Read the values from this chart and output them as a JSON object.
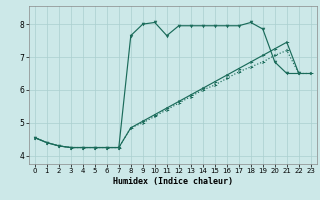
{
  "xlabel": "Humidex (Indice chaleur)",
  "bg_color": "#cce8e8",
  "grid_color": "#aacfcf",
  "line_color": "#1a6b5a",
  "xlim": [
    -0.5,
    23.5
  ],
  "ylim": [
    3.75,
    8.55
  ],
  "xticks": [
    0,
    1,
    2,
    3,
    4,
    5,
    6,
    7,
    8,
    9,
    10,
    11,
    12,
    13,
    14,
    15,
    16,
    17,
    18,
    19,
    20,
    21,
    22,
    23
  ],
  "yticks": [
    4,
    5,
    6,
    7,
    8
  ],
  "line1_x": [
    0,
    1,
    2,
    3,
    4,
    5,
    6,
    7,
    8,
    9,
    10,
    11,
    12,
    13,
    14,
    15,
    16,
    17,
    18,
    19,
    20,
    21,
    22,
    23
  ],
  "line1_y": [
    4.55,
    4.4,
    4.3,
    4.25,
    4.25,
    4.25,
    4.25,
    4.25,
    7.65,
    8.0,
    8.05,
    7.65,
    7.95,
    7.95,
    7.95,
    7.95,
    7.95,
    7.95,
    8.05,
    7.85,
    6.85,
    6.5,
    6.5,
    null
  ],
  "line2_x": [
    0,
    1,
    2,
    3,
    4,
    5,
    6,
    7,
    8,
    9,
    10,
    11,
    12,
    13,
    14,
    15,
    16,
    17,
    18,
    19,
    20,
    21,
    22,
    23
  ],
  "line2_y": [
    4.55,
    4.4,
    4.3,
    4.25,
    4.25,
    4.25,
    4.25,
    4.25,
    4.85,
    5.05,
    5.25,
    5.45,
    5.65,
    5.85,
    6.05,
    6.25,
    6.45,
    6.65,
    6.85,
    7.05,
    7.25,
    7.45,
    6.5,
    6.5
  ],
  "line3_x": [
    0,
    1,
    2,
    3,
    4,
    5,
    6,
    7,
    8,
    9,
    10,
    11,
    12,
    13,
    14,
    15,
    16,
    17,
    18,
    19,
    20,
    21,
    22,
    23
  ],
  "line3_y": [
    4.55,
    4.4,
    4.3,
    4.25,
    4.25,
    4.25,
    4.25,
    4.25,
    4.85,
    5.0,
    5.2,
    5.4,
    5.6,
    5.8,
    6.0,
    6.15,
    6.35,
    6.55,
    6.7,
    6.85,
    7.05,
    7.2,
    6.5,
    6.5
  ]
}
